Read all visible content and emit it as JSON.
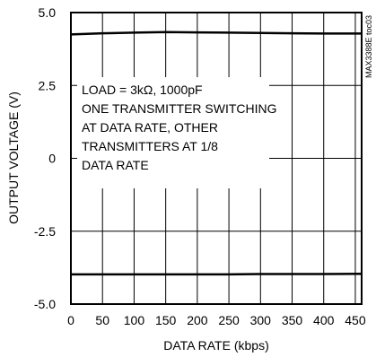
{
  "chart_data": {
    "type": "line",
    "title": "",
    "xlabel": "DATA RATE (kbps)",
    "ylabel": "OUTPUT VOLTAGE (V)",
    "xlim": [
      0,
      460
    ],
    "ylim": [
      -5.0,
      5.0
    ],
    "x_ticks": [
      0,
      50,
      100,
      150,
      200,
      250,
      300,
      350,
      400,
      450
    ],
    "x_tick_labels": [
      "0",
      "50",
      "100",
      "150",
      "200",
      "250",
      "300",
      "350",
      "400",
      "450"
    ],
    "y_ticks": [
      5.0,
      2.5,
      0,
      -2.5,
      -5.0
    ],
    "y_tick_labels": [
      "5.0",
      "2.5",
      "0",
      "-2.5",
      "-5.0"
    ],
    "grid": true,
    "annotation_lines": [
      "LOAD = 3kΩ, 1000pF",
      "ONE TRANSMITTER SWITCHING",
      "AT DATA RATE, OTHER",
      "TRANSMITTERS AT 1/8",
      "DATA RATE"
    ],
    "side_code": "MAX3388E toc03",
    "series": [
      {
        "x": [
          0,
          50,
          100,
          150,
          200,
          250,
          300,
          350,
          400,
          460
        ],
        "values": [
          4.25,
          4.29,
          4.31,
          4.33,
          4.32,
          4.31,
          4.3,
          4.29,
          4.28,
          4.28
        ]
      },
      {
        "x": [
          0,
          50,
          100,
          150,
          200,
          250,
          300,
          350,
          400,
          460
        ],
        "values": [
          -3.98,
          -3.98,
          -3.98,
          -3.98,
          -3.98,
          -3.98,
          -3.97,
          -3.97,
          -3.97,
          -3.96
        ]
      }
    ]
  }
}
